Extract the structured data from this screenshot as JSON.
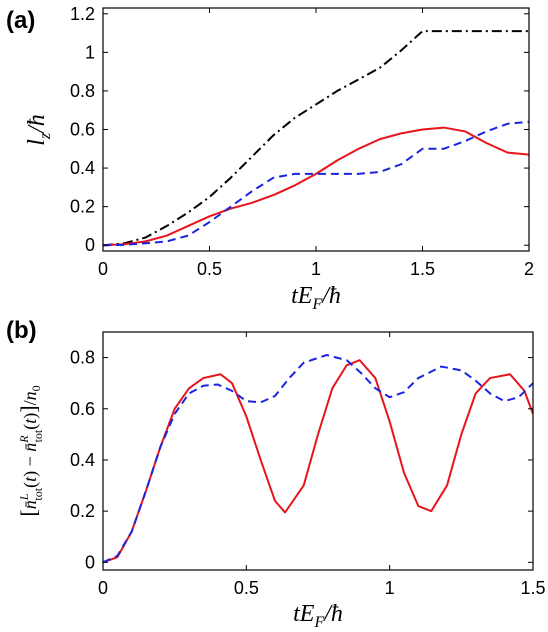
{
  "chart_data": [
    {
      "panel_label": "(a)",
      "type": "line",
      "xlabel": "tE_F/ħ",
      "ylabel": "l_z/ħ",
      "xlim": [
        0,
        2
      ],
      "ylim": [
        -0.03,
        1.23
      ],
      "xticks": [
        0,
        0.5,
        1,
        1.5,
        2
      ],
      "xtick_labels": [
        "0",
        "0.5",
        "1",
        "1.5",
        "2"
      ],
      "yticks": [
        0,
        0.2,
        0.4,
        0.6,
        0.8,
        1,
        1.2
      ],
      "ytick_labels": [
        "0",
        "0.2",
        "0.4",
        "0.6",
        "0.8",
        "1",
        "1.2"
      ],
      "grid": false,
      "series": [
        {
          "color": "#000000",
          "style": "dashdot",
          "x": [
            0,
            0.1,
            0.2,
            0.3,
            0.4,
            0.5,
            0.6,
            0.7,
            0.8,
            0.9,
            1.0,
            1.1,
            1.2,
            1.3,
            1.4,
            1.5,
            1.6,
            1.7,
            1.8,
            1.9,
            2.0
          ],
          "y": [
            0,
            0.01,
            0.04,
            0.1,
            0.17,
            0.25,
            0.35,
            0.46,
            0.57,
            0.66,
            0.73,
            0.8,
            0.86,
            0.92,
            1.01,
            1.11,
            1.11,
            1.11,
            1.11,
            1.11,
            1.11
          ]
        },
        {
          "color": "#e8141b",
          "style": "solid",
          "x": [
            0,
            0.1,
            0.2,
            0.3,
            0.4,
            0.5,
            0.6,
            0.7,
            0.8,
            0.9,
            1.0,
            1.1,
            1.2,
            1.3,
            1.4,
            1.5,
            1.6,
            1.7,
            1.8,
            1.9,
            2.0
          ],
          "y": [
            0,
            0.005,
            0.02,
            0.05,
            0.1,
            0.15,
            0.19,
            0.22,
            0.26,
            0.31,
            0.37,
            0.44,
            0.5,
            0.55,
            0.58,
            0.6,
            0.61,
            0.59,
            0.53,
            0.48,
            0.47
          ]
        },
        {
          "color": "#1b24e0",
          "style": "dashed",
          "x": [
            0,
            0.1,
            0.2,
            0.3,
            0.4,
            0.5,
            0.6,
            0.7,
            0.8,
            0.9,
            1.0,
            1.1,
            1.2,
            1.3,
            1.4,
            1.5,
            1.6,
            1.7,
            1.8,
            1.9,
            2.0
          ],
          "y": [
            0,
            0.002,
            0.01,
            0.02,
            0.05,
            0.12,
            0.2,
            0.28,
            0.35,
            0.37,
            0.37,
            0.37,
            0.37,
            0.38,
            0.42,
            0.5,
            0.5,
            0.54,
            0.59,
            0.63,
            0.64
          ]
        }
      ]
    },
    {
      "panel_label": "(b)",
      "type": "line",
      "xlabel": "tE_F/ħ",
      "ylabel": "[n̄^L_tot(t) − n̄^R_tot(t)]/n_0",
      "xlim": [
        0,
        1.5
      ],
      "ylim": [
        -0.03,
        0.9
      ],
      "xticks": [
        0,
        0.5,
        1,
        1.5
      ],
      "xtick_labels": [
        "0",
        "0.5",
        "1",
        "1.5"
      ],
      "yticks": [
        0,
        0.2,
        0.4,
        0.6,
        0.8
      ],
      "ytick_labels": [
        "0",
        "0.2",
        "0.4",
        "0.6",
        "0.8"
      ],
      "grid": false,
      "series": [
        {
          "color": "#e8141b",
          "style": "solid",
          "x": [
            0,
            0.05,
            0.1,
            0.15,
            0.2,
            0.25,
            0.3,
            0.35,
            0.41,
            0.45,
            0.5,
            0.55,
            0.6,
            0.635,
            0.7,
            0.75,
            0.8,
            0.85,
            0.895,
            0.95,
            1.0,
            1.05,
            1.1,
            1.145,
            1.2,
            1.25,
            1.3,
            1.35,
            1.42,
            1.47,
            1.5
          ],
          "y": [
            0,
            0.02,
            0.12,
            0.28,
            0.45,
            0.6,
            0.68,
            0.72,
            0.735,
            0.7,
            0.57,
            0.4,
            0.24,
            0.195,
            0.3,
            0.5,
            0.68,
            0.77,
            0.79,
            0.72,
            0.55,
            0.35,
            0.22,
            0.2,
            0.3,
            0.5,
            0.66,
            0.72,
            0.735,
            0.67,
            0.58
          ]
        },
        {
          "color": "#1b24e0",
          "style": "dashed",
          "x": [
            0,
            0.05,
            0.1,
            0.15,
            0.2,
            0.25,
            0.3,
            0.35,
            0.4,
            0.45,
            0.5,
            0.55,
            0.6,
            0.65,
            0.7,
            0.78,
            0.85,
            0.9,
            0.95,
            1.0,
            1.05,
            1.1,
            1.18,
            1.25,
            1.3,
            1.35,
            1.4,
            1.45,
            1.5
          ],
          "y": [
            0,
            0.025,
            0.12,
            0.28,
            0.45,
            0.58,
            0.66,
            0.69,
            0.695,
            0.67,
            0.63,
            0.625,
            0.65,
            0.72,
            0.78,
            0.81,
            0.79,
            0.74,
            0.68,
            0.645,
            0.665,
            0.72,
            0.765,
            0.75,
            0.71,
            0.66,
            0.63,
            0.645,
            0.7
          ]
        }
      ]
    }
  ]
}
